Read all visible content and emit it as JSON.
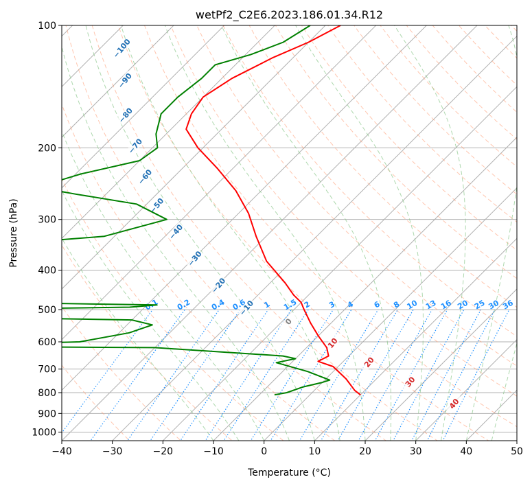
{
  "chart_data": {
    "type": "line",
    "subtype": "skew-t",
    "title": "wetPf2_C2E6.2023.186.01.34.R12",
    "xlabel": "Temperature (°C)",
    "ylabel": "Pressure (hPa)",
    "xlim": [
      -40,
      50
    ],
    "ylim": [
      1050,
      100
    ],
    "y_scale": "log",
    "grid": true,
    "x_ticks": [
      -40,
      -30,
      -20,
      -10,
      0,
      10,
      20,
      30,
      40,
      50
    ],
    "x_tick_labels": [
      "−40",
      "−30",
      "−20",
      "−10",
      "0",
      "10",
      "20",
      "30",
      "40",
      "50"
    ],
    "y_ticks": [
      100,
      200,
      300,
      400,
      500,
      600,
      700,
      800,
      900,
      1000
    ],
    "y_tick_labels": [
      "100",
      "200",
      "300",
      "400",
      "500",
      "600",
      "700",
      "800",
      "900",
      "1000"
    ],
    "series": [
      {
        "role": "temperature",
        "color": "#ff0000",
        "points": [
          [
            -67,
            100
          ],
          [
            -70,
            110
          ],
          [
            -74,
            120
          ],
          [
            -78,
            135
          ],
          [
            -80,
            150
          ],
          [
            -79,
            165
          ],
          [
            -77,
            180
          ],
          [
            -71,
            200
          ],
          [
            -63,
            225
          ],
          [
            -55,
            255
          ],
          [
            -48,
            290
          ],
          [
            -42,
            330
          ],
          [
            -35,
            380
          ],
          [
            -27,
            430
          ],
          [
            -23,
            460
          ],
          [
            -20,
            480
          ],
          [
            -18,
            500
          ],
          [
            -14,
            540
          ],
          [
            -10,
            580
          ],
          [
            -6,
            620
          ],
          [
            -4,
            650
          ],
          [
            -5,
            670
          ],
          [
            -1,
            690
          ],
          [
            4,
            740
          ],
          [
            8,
            790
          ],
          [
            10,
            810
          ]
        ]
      },
      {
        "role": "dewpoint",
        "color": "#008000",
        "points": [
          [
            -73,
            100
          ],
          [
            -75,
            110
          ],
          [
            -79,
            118
          ],
          [
            -84,
            125
          ],
          [
            -84,
            135
          ],
          [
            -85,
            150
          ],
          [
            -85,
            165
          ],
          [
            -82,
            185
          ],
          [
            -79,
            200
          ],
          [
            -80,
            215
          ],
          [
            -89,
            232
          ],
          [
            -95,
            250
          ],
          [
            -86,
            260
          ],
          [
            -72,
            275
          ],
          [
            -63,
            300
          ],
          [
            -72,
            330
          ],
          [
            -84,
            340
          ],
          [
            -104,
            350
          ],
          [
            -107,
            380
          ],
          [
            -109,
            415
          ],
          [
            -106,
            435
          ],
          [
            -98,
            470
          ],
          [
            -104,
            475
          ],
          [
            -48,
            487
          ],
          [
            -53,
            493
          ],
          [
            -111,
            505
          ],
          [
            -110,
            515
          ],
          [
            -50,
            530
          ],
          [
            -45,
            545
          ],
          [
            -48,
            570
          ],
          [
            -56,
            600
          ],
          [
            -86,
            615
          ],
          [
            -40,
            620
          ],
          [
            -13,
            650
          ],
          [
            -10,
            660
          ],
          [
            -13,
            675
          ],
          [
            -5,
            710
          ],
          [
            1,
            745
          ],
          [
            0,
            755
          ],
          [
            -3,
            775
          ],
          [
            -5,
            800
          ],
          [
            -7,
            810
          ]
        ]
      }
    ],
    "annotations": {
      "dry_adiabat_labels": [
        "−100",
        "−90",
        "−80",
        "−70",
        "−60",
        "−50",
        "−40",
        "−30",
        "−20",
        "−10",
        "0",
        "10",
        "20",
        "30",
        "40"
      ],
      "mixing_ratio_labels": [
        "0.1",
        "0.2",
        "0.4",
        "0.6",
        "1",
        "1.5",
        "2",
        "3",
        "4",
        "6",
        "8",
        "10",
        "13",
        "16",
        "20",
        "25",
        "30",
        "36"
      ],
      "mixing_ratio_label_pressure": 500
    },
    "colors": {
      "temperature": "#ff0000",
      "dewpoint": "#008000",
      "isotherm": "#b0b0b0",
      "dry_adiabat": "#ffa07a",
      "moist_adiabat": "#8cc88c",
      "mixing_ratio": "#1e90ff",
      "dry_adiabat_label_cold": "#1f6fb4",
      "dry_adiabat_label_warm": "#d62728",
      "dry_adiabat_label_zero": "#808080",
      "background_curves": "#d2b48c"
    }
  }
}
